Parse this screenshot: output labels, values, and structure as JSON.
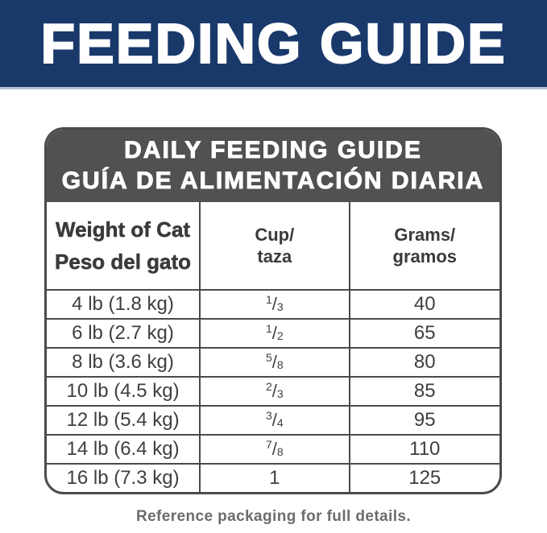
{
  "banner": {
    "title": "FEEDING GUIDE"
  },
  "guide": {
    "header_line1": "DAILY FEEDING GUIDE",
    "header_line2": "GUÍA DE ALIMENTACIÓN DIARIA",
    "columns": {
      "weight_line1": "Weight of Cat",
      "weight_line2": "Peso del gato",
      "cup_line1": "Cup/",
      "cup_line2": "taza",
      "grams_line1": "Grams/",
      "grams_line2": "gramos"
    },
    "rows": [
      {
        "weight": "4 lb (1.8 kg)",
        "cup_whole": "",
        "cup_num": "1",
        "cup_slash": "/",
        "cup_den": "3",
        "grams": "40"
      },
      {
        "weight": "6 lb (2.7 kg)",
        "cup_whole": "",
        "cup_num": "1",
        "cup_slash": "/",
        "cup_den": "2",
        "grams": "65"
      },
      {
        "weight": "8 lb (3.6 kg)",
        "cup_whole": "",
        "cup_num": "5",
        "cup_slash": "/",
        "cup_den": "8",
        "grams": "80"
      },
      {
        "weight": "10 lb (4.5 kg)",
        "cup_whole": "",
        "cup_num": "2",
        "cup_slash": "/",
        "cup_den": "3",
        "grams": "85"
      },
      {
        "weight": "12 lb (5.4 kg)",
        "cup_whole": "",
        "cup_num": "3",
        "cup_slash": "/",
        "cup_den": "4",
        "grams": "95"
      },
      {
        "weight": "14 lb (6.4 kg)",
        "cup_whole": "",
        "cup_num": "7",
        "cup_slash": "/",
        "cup_den": "8",
        "grams": "110"
      },
      {
        "weight": "16 lb (7.3 kg)",
        "cup_whole": "1",
        "cup_num": "",
        "cup_slash": "",
        "cup_den": "",
        "grams": "125"
      }
    ]
  },
  "footer": {
    "note": "Reference packaging for full details."
  },
  "colors": {
    "banner_blue": "#19396b",
    "header_gray": "#515153",
    "table_line": "#4b4b4d",
    "cell_text": "#3f3f41",
    "footer_text": "#6b6c6e"
  }
}
